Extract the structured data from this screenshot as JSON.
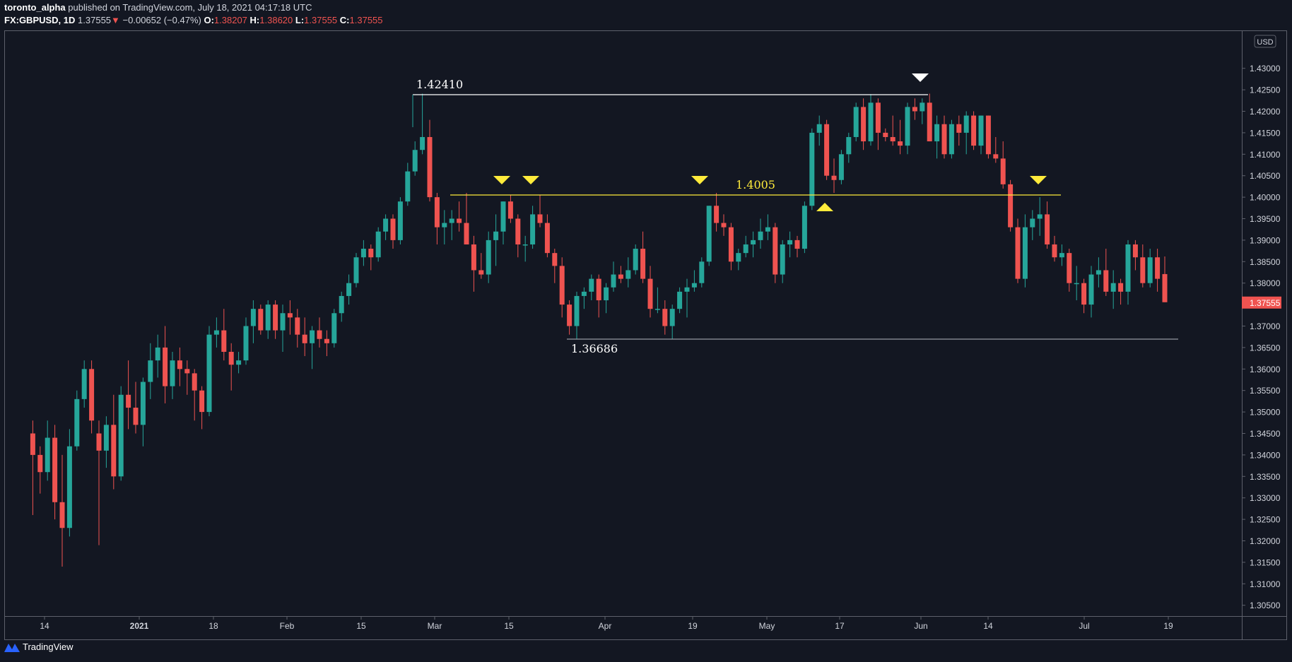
{
  "header": {
    "author": "toronto_alpha",
    "published_text": "published on TradingView.com, July 18, 2021 04:17:18 UTC",
    "symbol": "FX:GBPUSD, 1D",
    "last": "1.37555",
    "change_icon": "down-triangle-icon",
    "change": "−0.00652 (−0.47%)",
    "o_label": "O:",
    "o": "1.38207",
    "h_label": "H:",
    "h": "1.38620",
    "l_label": "L:",
    "l": "1.37555",
    "c_label": "C:",
    "c": "1.37555"
  },
  "colors": {
    "background": "#131722",
    "up": "#26a69a",
    "down": "#ef5350",
    "grid_border": "#5d606b",
    "axis_text": "#d1d4dc",
    "annotation_yellow": "#ffeb3b",
    "annotation_white": "#ffffff",
    "price_tag": "#ef5350"
  },
  "footer": {
    "brand": "TradingView",
    "logo_icon": "tradingview-logo-icon"
  },
  "chart_data": {
    "type": "candlestick",
    "title": "FX:GBPUSD, 1D",
    "currency_label": "USD",
    "ylim": [
      1.302,
      1.436
    ],
    "y_ticks": [
      "1.43000",
      "1.42500",
      "1.42000",
      "1.41500",
      "1.41000",
      "1.40500",
      "1.40000",
      "1.39500",
      "1.39000",
      "1.38500",
      "1.38000",
      "1.37500",
      "1.37000",
      "1.36500",
      "1.36000",
      "1.35500",
      "1.35000",
      "1.34500",
      "1.34000",
      "1.33500",
      "1.33000",
      "1.32500",
      "1.32000",
      "1.31500",
      "1.31000",
      "1.30500"
    ],
    "x_ticks": [
      "14",
      "2021",
      "18",
      "Feb",
      "15",
      "Mar",
      "15",
      "Apr",
      "19",
      "May",
      "17",
      "Jun",
      "14",
      "Jul",
      "19"
    ],
    "last_price_tag": "1.37555",
    "annotations": [
      {
        "type": "hline",
        "label": "1.42410",
        "value": 1.4241,
        "color": "#ffffff"
      },
      {
        "type": "hline",
        "label": "1.4005",
        "value": 1.4005,
        "color": "#ffeb3b"
      },
      {
        "type": "hline",
        "label": "1.36686",
        "value": 1.36686,
        "color": "#9598a1"
      },
      {
        "type": "marker-down",
        "date": "2021-03-11",
        "color": "#ffeb3b"
      },
      {
        "type": "marker-down",
        "date": "2021-03-17",
        "color": "#ffeb3b"
      },
      {
        "type": "marker-down",
        "date": "2021-04-20",
        "color": "#ffeb3b"
      },
      {
        "type": "marker-up",
        "date": "2021-05-13",
        "color": "#ffeb3b"
      },
      {
        "type": "marker-down",
        "date": "2021-06-01",
        "color": "#ffffff"
      },
      {
        "type": "marker-down",
        "date": "2021-06-23",
        "color": "#ffeb3b"
      }
    ],
    "ohlc_note": "approximate daily OHLC read from candles, Dec 2020 - Jul 16 2021",
    "candles": [
      [
        1.345,
        1.348,
        1.326,
        1.34
      ],
      [
        1.34,
        1.342,
        1.331,
        1.336
      ],
      [
        1.336,
        1.348,
        1.334,
        1.344
      ],
      [
        1.344,
        1.347,
        1.325,
        1.329
      ],
      [
        1.329,
        1.34,
        1.314,
        1.323
      ],
      [
        1.323,
        1.346,
        1.321,
        1.342
      ],
      [
        1.342,
        1.355,
        1.341,
        1.353
      ],
      [
        1.353,
        1.362,
        1.351,
        1.36
      ],
      [
        1.36,
        1.362,
        1.345,
        1.348
      ],
      [
        1.345,
        1.348,
        1.319,
        1.341
      ],
      [
        1.341,
        1.349,
        1.337,
        1.347
      ],
      [
        1.347,
        1.354,
        1.332,
        1.335
      ],
      [
        1.335,
        1.356,
        1.334,
        1.354
      ],
      [
        1.354,
        1.362,
        1.346,
        1.351
      ],
      [
        1.351,
        1.357,
        1.345,
        1.347
      ],
      [
        1.347,
        1.358,
        1.342,
        1.357
      ],
      [
        1.357,
        1.366,
        1.353,
        1.362
      ],
      [
        1.362,
        1.368,
        1.358,
        1.365
      ],
      [
        1.365,
        1.37,
        1.352,
        1.356
      ],
      [
        1.356,
        1.364,
        1.353,
        1.362
      ],
      [
        1.362,
        1.365,
        1.356,
        1.36
      ],
      [
        1.36,
        1.362,
        1.354,
        1.359
      ],
      [
        1.359,
        1.36,
        1.348,
        1.355
      ],
      [
        1.355,
        1.356,
        1.346,
        1.35
      ],
      [
        1.35,
        1.37,
        1.349,
        1.368
      ],
      [
        1.368,
        1.372,
        1.365,
        1.369
      ],
      [
        1.369,
        1.374,
        1.362,
        1.364
      ],
      [
        1.364,
        1.366,
        1.355,
        1.361
      ],
      [
        1.361,
        1.364,
        1.359,
        1.362
      ],
      [
        1.362,
        1.372,
        1.361,
        1.37
      ],
      [
        1.37,
        1.376,
        1.366,
        1.374
      ],
      [
        1.374,
        1.375,
        1.368,
        1.369
      ],
      [
        1.369,
        1.376,
        1.367,
        1.375
      ],
      [
        1.375,
        1.376,
        1.367,
        1.369
      ],
      [
        1.369,
        1.375,
        1.364,
        1.373
      ],
      [
        1.373,
        1.376,
        1.368,
        1.372
      ],
      [
        1.372,
        1.374,
        1.365,
        1.368
      ],
      [
        1.368,
        1.372,
        1.363,
        1.366
      ],
      [
        1.366,
        1.37,
        1.36,
        1.369
      ],
      [
        1.369,
        1.372,
        1.365,
        1.367
      ],
      [
        1.367,
        1.369,
        1.363,
        1.366
      ],
      [
        1.366,
        1.374,
        1.365,
        1.373
      ],
      [
        1.373,
        1.378,
        1.371,
        1.377
      ],
      [
        1.377,
        1.382,
        1.375,
        1.38
      ],
      [
        1.38,
        1.387,
        1.379,
        1.386
      ],
      [
        1.386,
        1.39,
        1.384,
        1.388
      ],
      [
        1.388,
        1.389,
        1.383,
        1.386
      ],
      [
        1.386,
        1.393,
        1.385,
        1.392
      ],
      [
        1.392,
        1.396,
        1.39,
        1.395
      ],
      [
        1.395,
        1.396,
        1.388,
        1.39
      ],
      [
        1.39,
        1.4,
        1.389,
        1.399
      ],
      [
        1.399,
        1.408,
        1.398,
        1.406
      ],
      [
        1.406,
        1.413,
        1.405,
        1.411
      ],
      [
        1.411,
        1.4241,
        1.41,
        1.414
      ],
      [
        1.414,
        1.418,
        1.399,
        1.4
      ],
      [
        1.4,
        1.401,
        1.389,
        1.393
      ],
      [
        1.393,
        1.397,
        1.389,
        1.394
      ],
      [
        1.394,
        1.397,
        1.39,
        1.395
      ],
      [
        1.395,
        1.399,
        1.392,
        1.394
      ],
      [
        1.394,
        1.401,
        1.391,
        1.389
      ],
      [
        1.389,
        1.391,
        1.378,
        1.383
      ],
      [
        1.383,
        1.387,
        1.381,
        1.382
      ],
      [
        1.382,
        1.392,
        1.38,
        1.39
      ],
      [
        1.39,
        1.396,
        1.384,
        1.392
      ],
      [
        1.392,
        1.399,
        1.389,
        1.399
      ],
      [
        1.399,
        1.4005,
        1.394,
        1.395
      ],
      [
        1.395,
        1.396,
        1.386,
        1.389
      ],
      [
        1.389,
        1.391,
        1.385,
        1.389
      ],
      [
        1.389,
        1.398,
        1.388,
        1.396
      ],
      [
        1.396,
        1.4005,
        1.393,
        1.394
      ],
      [
        1.394,
        1.396,
        1.386,
        1.387
      ],
      [
        1.387,
        1.388,
        1.38,
        1.384
      ],
      [
        1.384,
        1.386,
        1.372,
        1.375
      ],
      [
        1.375,
        1.376,
        1.368,
        1.37
      ],
      [
        1.37,
        1.378,
        1.367,
        1.377
      ],
      [
        1.377,
        1.379,
        1.374,
        1.378
      ],
      [
        1.378,
        1.382,
        1.376,
        1.381
      ],
      [
        1.381,
        1.382,
        1.372,
        1.376
      ],
      [
        1.376,
        1.38,
        1.373,
        1.379
      ],
      [
        1.379,
        1.385,
        1.378,
        1.382
      ],
      [
        1.382,
        1.384,
        1.38,
        1.381
      ],
      [
        1.381,
        1.386,
        1.379,
        1.383
      ],
      [
        1.383,
        1.389,
        1.382,
        1.388
      ],
      [
        1.388,
        1.392,
        1.38,
        1.381
      ],
      [
        1.381,
        1.384,
        1.372,
        1.374
      ],
      [
        1.374,
        1.379,
        1.373,
        1.374
      ],
      [
        1.374,
        1.376,
        1.368,
        1.37
      ],
      [
        1.37,
        1.375,
        1.3669,
        1.374
      ],
      [
        1.374,
        1.379,
        1.373,
        1.378
      ],
      [
        1.378,
        1.381,
        1.372,
        1.379
      ],
      [
        1.379,
        1.383,
        1.378,
        1.38
      ],
      [
        1.38,
        1.386,
        1.379,
        1.385
      ],
      [
        1.385,
        1.398,
        1.384,
        1.398
      ],
      [
        1.398,
        1.401,
        1.392,
        1.394
      ],
      [
        1.394,
        1.396,
        1.391,
        1.393
      ],
      [
        1.393,
        1.394,
        1.383,
        1.385
      ],
      [
        1.385,
        1.388,
        1.383,
        1.387
      ],
      [
        1.387,
        1.391,
        1.386,
        1.389
      ],
      [
        1.389,
        1.392,
        1.386,
        1.39
      ],
      [
        1.39,
        1.395,
        1.388,
        1.392
      ],
      [
        1.392,
        1.396,
        1.39,
        1.393
      ],
      [
        1.393,
        1.394,
        1.38,
        1.382
      ],
      [
        1.382,
        1.39,
        1.38,
        1.389
      ],
      [
        1.389,
        1.392,
        1.386,
        1.39
      ],
      [
        1.39,
        1.391,
        1.386,
        1.388
      ],
      [
        1.388,
        1.399,
        1.387,
        1.398
      ],
      [
        1.398,
        1.416,
        1.397,
        1.415
      ],
      [
        1.415,
        1.419,
        1.412,
        1.417
      ],
      [
        1.417,
        1.418,
        1.404,
        1.405
      ],
      [
        1.405,
        1.409,
        1.401,
        1.404
      ],
      [
        1.404,
        1.411,
        1.403,
        1.41
      ],
      [
        1.41,
        1.415,
        1.408,
        1.414
      ],
      [
        1.414,
        1.422,
        1.413,
        1.421
      ],
      [
        1.421,
        1.423,
        1.411,
        1.413
      ],
      [
        1.413,
        1.424,
        1.412,
        1.422
      ],
      [
        1.422,
        1.423,
        1.411,
        1.415
      ],
      [
        1.415,
        1.416,
        1.413,
        1.414
      ],
      [
        1.414,
        1.419,
        1.412,
        1.413
      ],
      [
        1.413,
        1.418,
        1.41,
        1.412
      ],
      [
        1.412,
        1.422,
        1.41,
        1.421
      ],
      [
        1.421,
        1.423,
        1.418,
        1.42
      ],
      [
        1.42,
        1.423,
        1.417,
        1.422
      ],
      [
        1.422,
        1.4241,
        1.413,
        1.413
      ],
      [
        1.413,
        1.419,
        1.409,
        1.417
      ],
      [
        1.417,
        1.419,
        1.409,
        1.41
      ],
      [
        1.41,
        1.418,
        1.409,
        1.417
      ],
      [
        1.417,
        1.419,
        1.412,
        1.415
      ],
      [
        1.415,
        1.42,
        1.41,
        1.419
      ],
      [
        1.419,
        1.42,
        1.411,
        1.412
      ],
      [
        1.412,
        1.419,
        1.41,
        1.419
      ],
      [
        1.419,
        1.419,
        1.409,
        1.41
      ],
      [
        1.41,
        1.414,
        1.408,
        1.409
      ],
      [
        1.409,
        1.413,
        1.402,
        1.403
      ],
      [
        1.403,
        1.404,
        1.392,
        1.393
      ],
      [
        1.393,
        1.395,
        1.38,
        1.381
      ],
      [
        1.381,
        1.396,
        1.379,
        1.393
      ],
      [
        1.393,
        1.397,
        1.39,
        1.395
      ],
      [
        1.395,
        1.4,
        1.391,
        1.396
      ],
      [
        1.396,
        1.399,
        1.388,
        1.389
      ],
      [
        1.389,
        1.391,
        1.385,
        1.386
      ],
      [
        1.386,
        1.389,
        1.384,
        1.387
      ],
      [
        1.387,
        1.388,
        1.378,
        1.38
      ],
      [
        1.38,
        1.384,
        1.376,
        1.38
      ],
      [
        1.38,
        1.381,
        1.373,
        1.375
      ],
      [
        1.375,
        1.384,
        1.372,
        1.382
      ],
      [
        1.382,
        1.386,
        1.379,
        1.383
      ],
      [
        1.383,
        1.388,
        1.377,
        1.378
      ],
      [
        1.378,
        1.383,
        1.374,
        1.38
      ],
      [
        1.38,
        1.381,
        1.375,
        1.378
      ],
      [
        1.378,
        1.39,
        1.375,
        1.389
      ],
      [
        1.389,
        1.39,
        1.383,
        1.386
      ],
      [
        1.386,
        1.389,
        1.379,
        1.38
      ],
      [
        1.38,
        1.388,
        1.379,
        1.386
      ],
      [
        1.386,
        1.388,
        1.378,
        1.381
      ],
      [
        1.3821,
        1.3862,
        1.37555,
        1.37555
      ]
    ]
  }
}
